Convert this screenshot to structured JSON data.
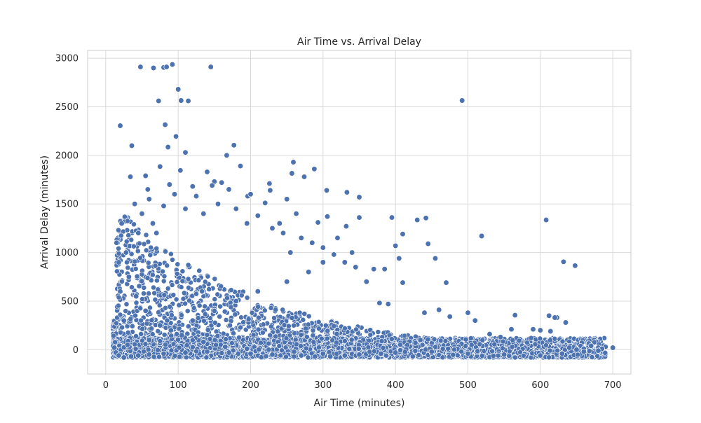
{
  "chart_data": {
    "type": "scatter",
    "title": "Air Time vs. Arrival Delay",
    "xlabel": "Air Time (minutes)",
    "ylabel": "Arrival Delay (minutes)",
    "xlim": [
      -25,
      725
    ],
    "ylim": [
      -250,
      3080
    ],
    "xticks": [
      0,
      100,
      200,
      300,
      400,
      500,
      600,
      700
    ],
    "yticks": [
      0,
      500,
      1000,
      1500,
      2000,
      2500,
      3000
    ],
    "grid": true,
    "marker_color": "#4c72b0",
    "marker_edge_color": "#ffffff",
    "legend": "none",
    "points": [
      [
        48,
        2910
      ],
      [
        66,
        2900
      ],
      [
        80,
        2905
      ],
      [
        84,
        2910
      ],
      [
        92,
        2935
      ],
      [
        145,
        2910
      ],
      [
        100,
        2680
      ],
      [
        73,
        2560
      ],
      [
        104,
        2565
      ],
      [
        114,
        2560
      ],
      [
        492,
        2565
      ],
      [
        20,
        2305
      ],
      [
        82,
        2315
      ],
      [
        97,
        2195
      ],
      [
        177,
        2105
      ],
      [
        36,
        2100
      ],
      [
        86,
        2085
      ],
      [
        110,
        2030
      ],
      [
        167,
        2000
      ],
      [
        259,
        1930
      ],
      [
        186,
        1890
      ],
      [
        75,
        1885
      ],
      [
        103,
        1845
      ],
      [
        288,
        1860
      ],
      [
        140,
        1830
      ],
      [
        257,
        1815
      ],
      [
        55,
        1790
      ],
      [
        34,
        1780
      ],
      [
        274,
        1780
      ],
      [
        150,
        1730
      ],
      [
        226,
        1710
      ],
      [
        147,
        1690
      ],
      [
        305,
        1640
      ],
      [
        227,
        1640
      ],
      [
        333,
        1620
      ],
      [
        196,
        1580
      ],
      [
        350,
        1570
      ],
      [
        220,
        1510
      ],
      [
        263,
        1400
      ],
      [
        306,
        1370
      ],
      [
        293,
        1310
      ],
      [
        332,
        1270
      ],
      [
        395,
        1360
      ],
      [
        442,
        1355
      ],
      [
        430,
        1335
      ],
      [
        608,
        1335
      ],
      [
        519,
        1170
      ],
      [
        350,
        1360
      ],
      [
        410,
        1190
      ],
      [
        400,
        1070
      ],
      [
        405,
        940
      ],
      [
        445,
        1090
      ],
      [
        455,
        940
      ],
      [
        370,
        830
      ],
      [
        385,
        830
      ],
      [
        410,
        690
      ],
      [
        470,
        690
      ],
      [
        632,
        905
      ],
      [
        648,
        865
      ],
      [
        378,
        480
      ],
      [
        390,
        470
      ],
      [
        440,
        380
      ],
      [
        475,
        340
      ],
      [
        500,
        380
      ],
      [
        565,
        355
      ],
      [
        612,
        350
      ],
      [
        623,
        330
      ],
      [
        635,
        280
      ],
      [
        460,
        410
      ],
      [
        620,
        330
      ],
      [
        560,
        210
      ],
      [
        590,
        210
      ],
      [
        600,
        200
      ],
      [
        614,
        190
      ],
      [
        530,
        160
      ],
      [
        545,
        130
      ],
      [
        510,
        300
      ],
      [
        690,
        30
      ],
      [
        680,
        20
      ],
      [
        670,
        40
      ],
      [
        660,
        10
      ],
      [
        650,
        0
      ],
      [
        640,
        20
      ],
      [
        700,
        20
      ],
      [
        685,
        10
      ],
      [
        50,
        1400
      ],
      [
        60,
        1550
      ],
      [
        65,
        1300
      ],
      [
        70,
        1200
      ],
      [
        80,
        1480
      ],
      [
        95,
        1600
      ],
      [
        110,
        1450
      ],
      [
        125,
        1580
      ],
      [
        135,
        1400
      ],
      [
        155,
        1500
      ],
      [
        170,
        1650
      ],
      [
        180,
        1450
      ],
      [
        195,
        1300
      ],
      [
        210,
        1380
      ],
      [
        230,
        1250
      ],
      [
        245,
        1200
      ],
      [
        270,
        1150
      ],
      [
        285,
        1100
      ],
      [
        300,
        1050
      ],
      [
        315,
        980
      ],
      [
        330,
        900
      ],
      [
        345,
        850
      ],
      [
        360,
        700
      ],
      [
        40,
        1500
      ],
      [
        45,
        1200
      ],
      [
        58,
        1650
      ],
      [
        88,
        1700
      ],
      [
        120,
        1680
      ],
      [
        160,
        1720
      ],
      [
        200,
        1600
      ],
      [
        250,
        1550
      ],
      [
        240,
        1300
      ],
      [
        255,
        1000
      ],
      [
        320,
        1150
      ],
      [
        340,
        1000
      ],
      [
        300,
        900
      ],
      [
        280,
        800
      ],
      [
        250,
        700
      ],
      [
        210,
        600
      ],
      [
        180,
        500
      ],
      [
        150,
        400
      ],
      [
        120,
        300
      ],
      [
        90,
        200
      ],
      [
        60,
        100
      ],
      [
        30,
        50
      ],
      [
        25,
        300
      ],
      [
        20,
        600
      ],
      [
        18,
        900
      ],
      [
        15,
        1100
      ],
      [
        22,
        1300
      ],
      [
        28,
        1000
      ],
      [
        32,
        750
      ],
      [
        42,
        550
      ],
      [
        55,
        400
      ],
      [
        75,
        250
      ],
      [
        105,
        150
      ],
      [
        135,
        80
      ],
      [
        165,
        30
      ],
      [
        195,
        10
      ],
      [
        225,
        0
      ],
      [
        260,
        -20
      ],
      [
        300,
        -40
      ],
      [
        350,
        -50
      ],
      [
        400,
        -30
      ],
      [
        450,
        -20
      ],
      [
        500,
        -40
      ],
      [
        550,
        -50
      ],
      [
        600,
        -60
      ],
      [
        630,
        -40
      ],
      [
        660,
        -20
      ],
      [
        680,
        -10
      ],
      [
        12,
        20
      ],
      [
        14,
        -30
      ],
      [
        18,
        -60
      ],
      [
        25,
        -80
      ],
      [
        35,
        -70
      ],
      [
        45,
        -60
      ],
      [
        60,
        -50
      ],
      [
        80,
        -40
      ],
      [
        110,
        -30
      ],
      [
        140,
        -20
      ],
      [
        170,
        -30
      ],
      [
        200,
        -40
      ],
      [
        230,
        -50
      ],
      [
        270,
        -60
      ],
      [
        310,
        -70
      ],
      [
        330,
        -60
      ],
      [
        380,
        -40
      ]
    ]
  }
}
